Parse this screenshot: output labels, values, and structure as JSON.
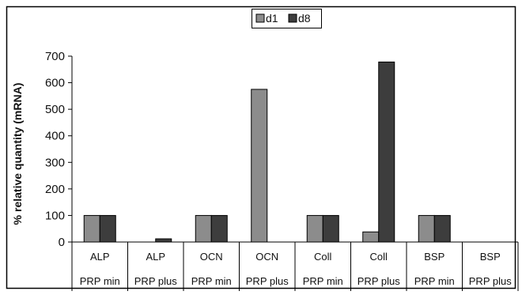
{
  "chart_data": {
    "type": "bar",
    "title": "",
    "xlabel": "",
    "ylabel": "% relative quantity (mRNA)",
    "ylim": [
      0,
      700
    ],
    "yticks": [
      0,
      100,
      200,
      300,
      400,
      500,
      600,
      700
    ],
    "categories": [
      {
        "line1": "ALP",
        "line2": "PRP min"
      },
      {
        "line1": "ALP",
        "line2": "PRP plus"
      },
      {
        "line1": "OCN",
        "line2": "PRP min"
      },
      {
        "line1": "OCN",
        "line2": "PRP plus"
      },
      {
        "line1": "Coll",
        "line2": "PRP min"
      },
      {
        "line1": "Coll",
        "line2": "PRP plus"
      },
      {
        "line1": "BSP",
        "line2": "PRP min"
      },
      {
        "line1": "BSP",
        "line2": "PRP plus"
      }
    ],
    "series": [
      {
        "name": "d1",
        "color": "#8c8c8c",
        "values": [
          100,
          0,
          100,
          575,
          100,
          38,
          100,
          0
        ]
      },
      {
        "name": "d8",
        "color": "#3d3d3d",
        "values": [
          100,
          12,
          100,
          0,
          100,
          678,
          100,
          0
        ]
      }
    ],
    "legend_position": "top-center",
    "grid": false
  }
}
